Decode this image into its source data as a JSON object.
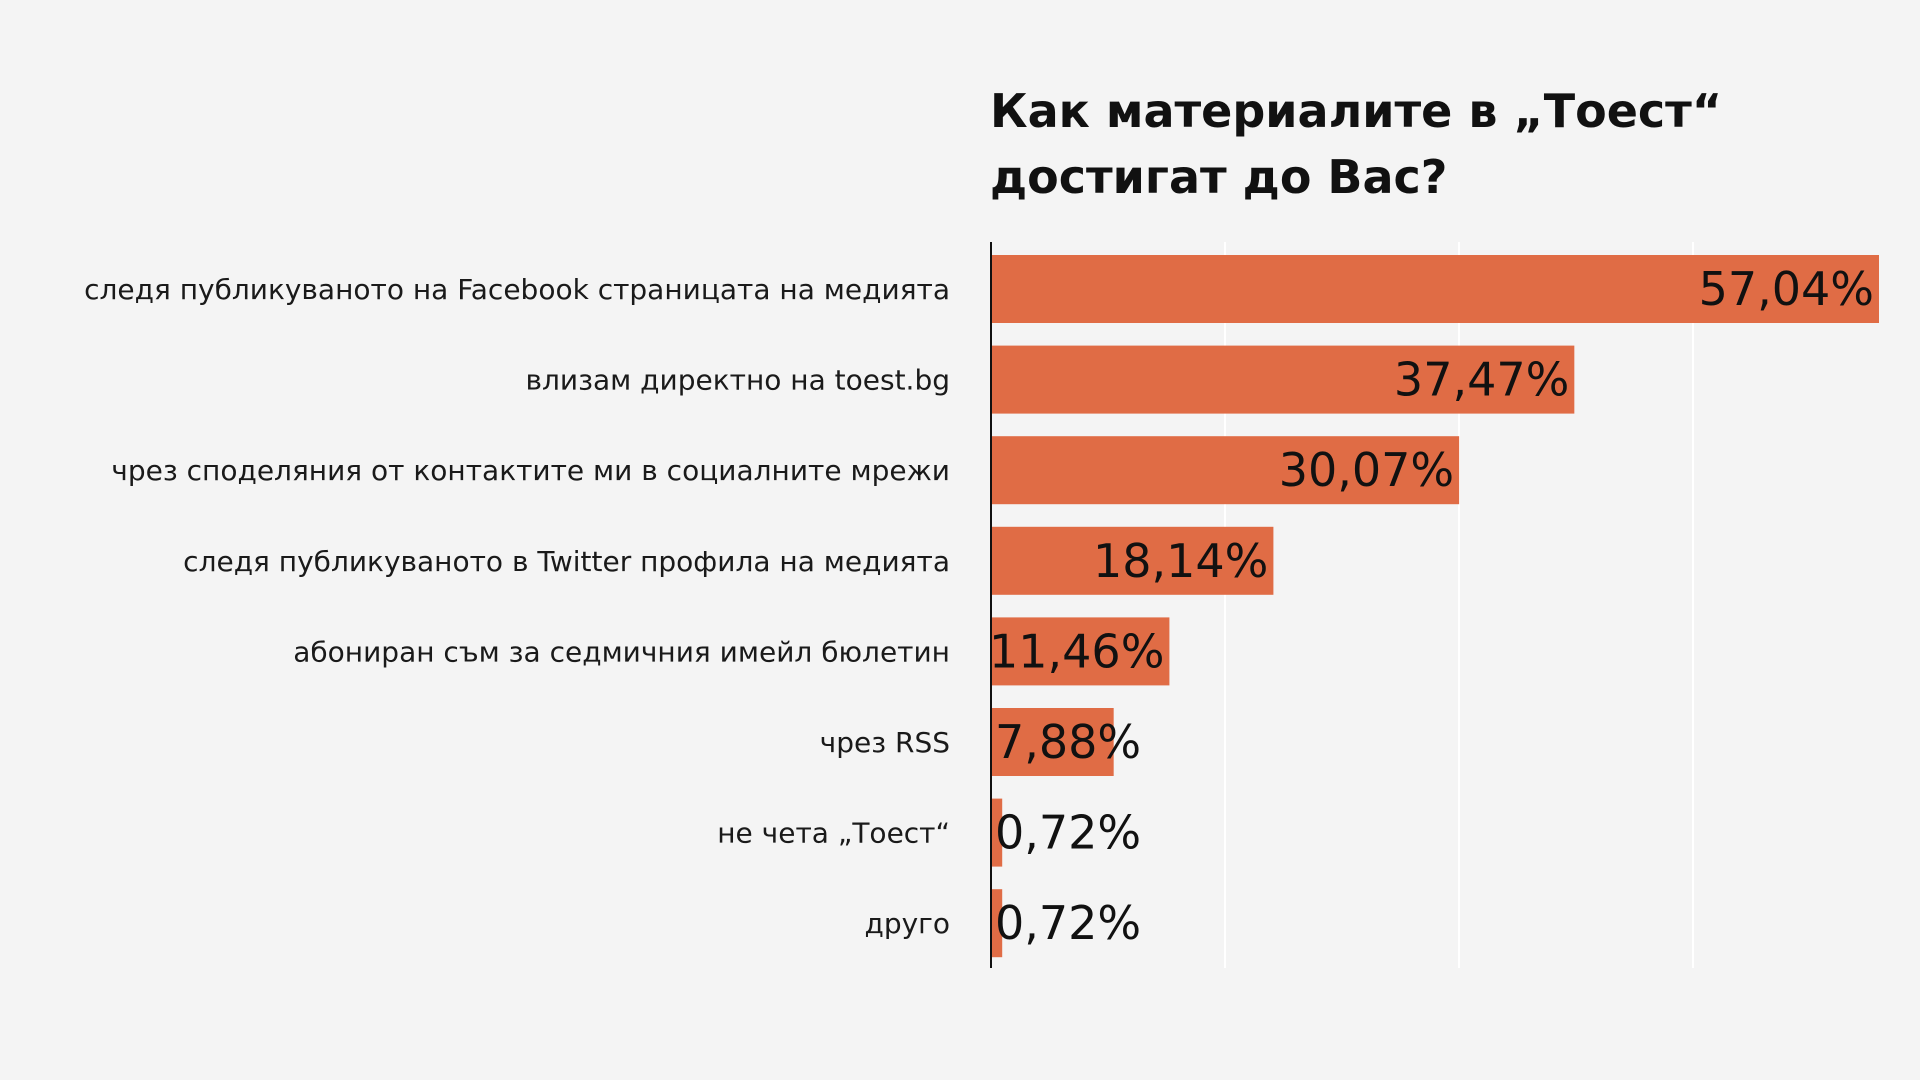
{
  "chart_data": {
    "type": "bar",
    "orientation": "horizontal",
    "title_lines": [
      "Как материалите в „Тоест“",
      "достигат до Вас?"
    ],
    "categories": [
      "следя публикуваното на Facebook страницата на медията",
      "влизам директно на toest.bg",
      "чрез споделяния от контактите ми в социалните мрежи",
      "следя публикуваното в Twitter профила на медията",
      "абониран съм за седмичния имейл бюлетин",
      "чрез RSS",
      "не чета „Тоест“",
      "друго"
    ],
    "values": [
      57.04,
      37.47,
      30.07,
      18.14,
      11.46,
      7.88,
      0.72,
      0.72
    ],
    "value_labels": [
      "57,04%",
      "37,47%",
      "30,07%",
      "18,14%",
      "11,46%",
      "7,88%",
      "0,72%",
      "0,72%"
    ],
    "xlim": [
      0,
      57.04
    ],
    "grid": true,
    "legend": "none",
    "colors": {
      "bar": "#e06c45",
      "background": "#f4f4f4",
      "axis": "#111111",
      "grid": "#ffffff"
    }
  }
}
